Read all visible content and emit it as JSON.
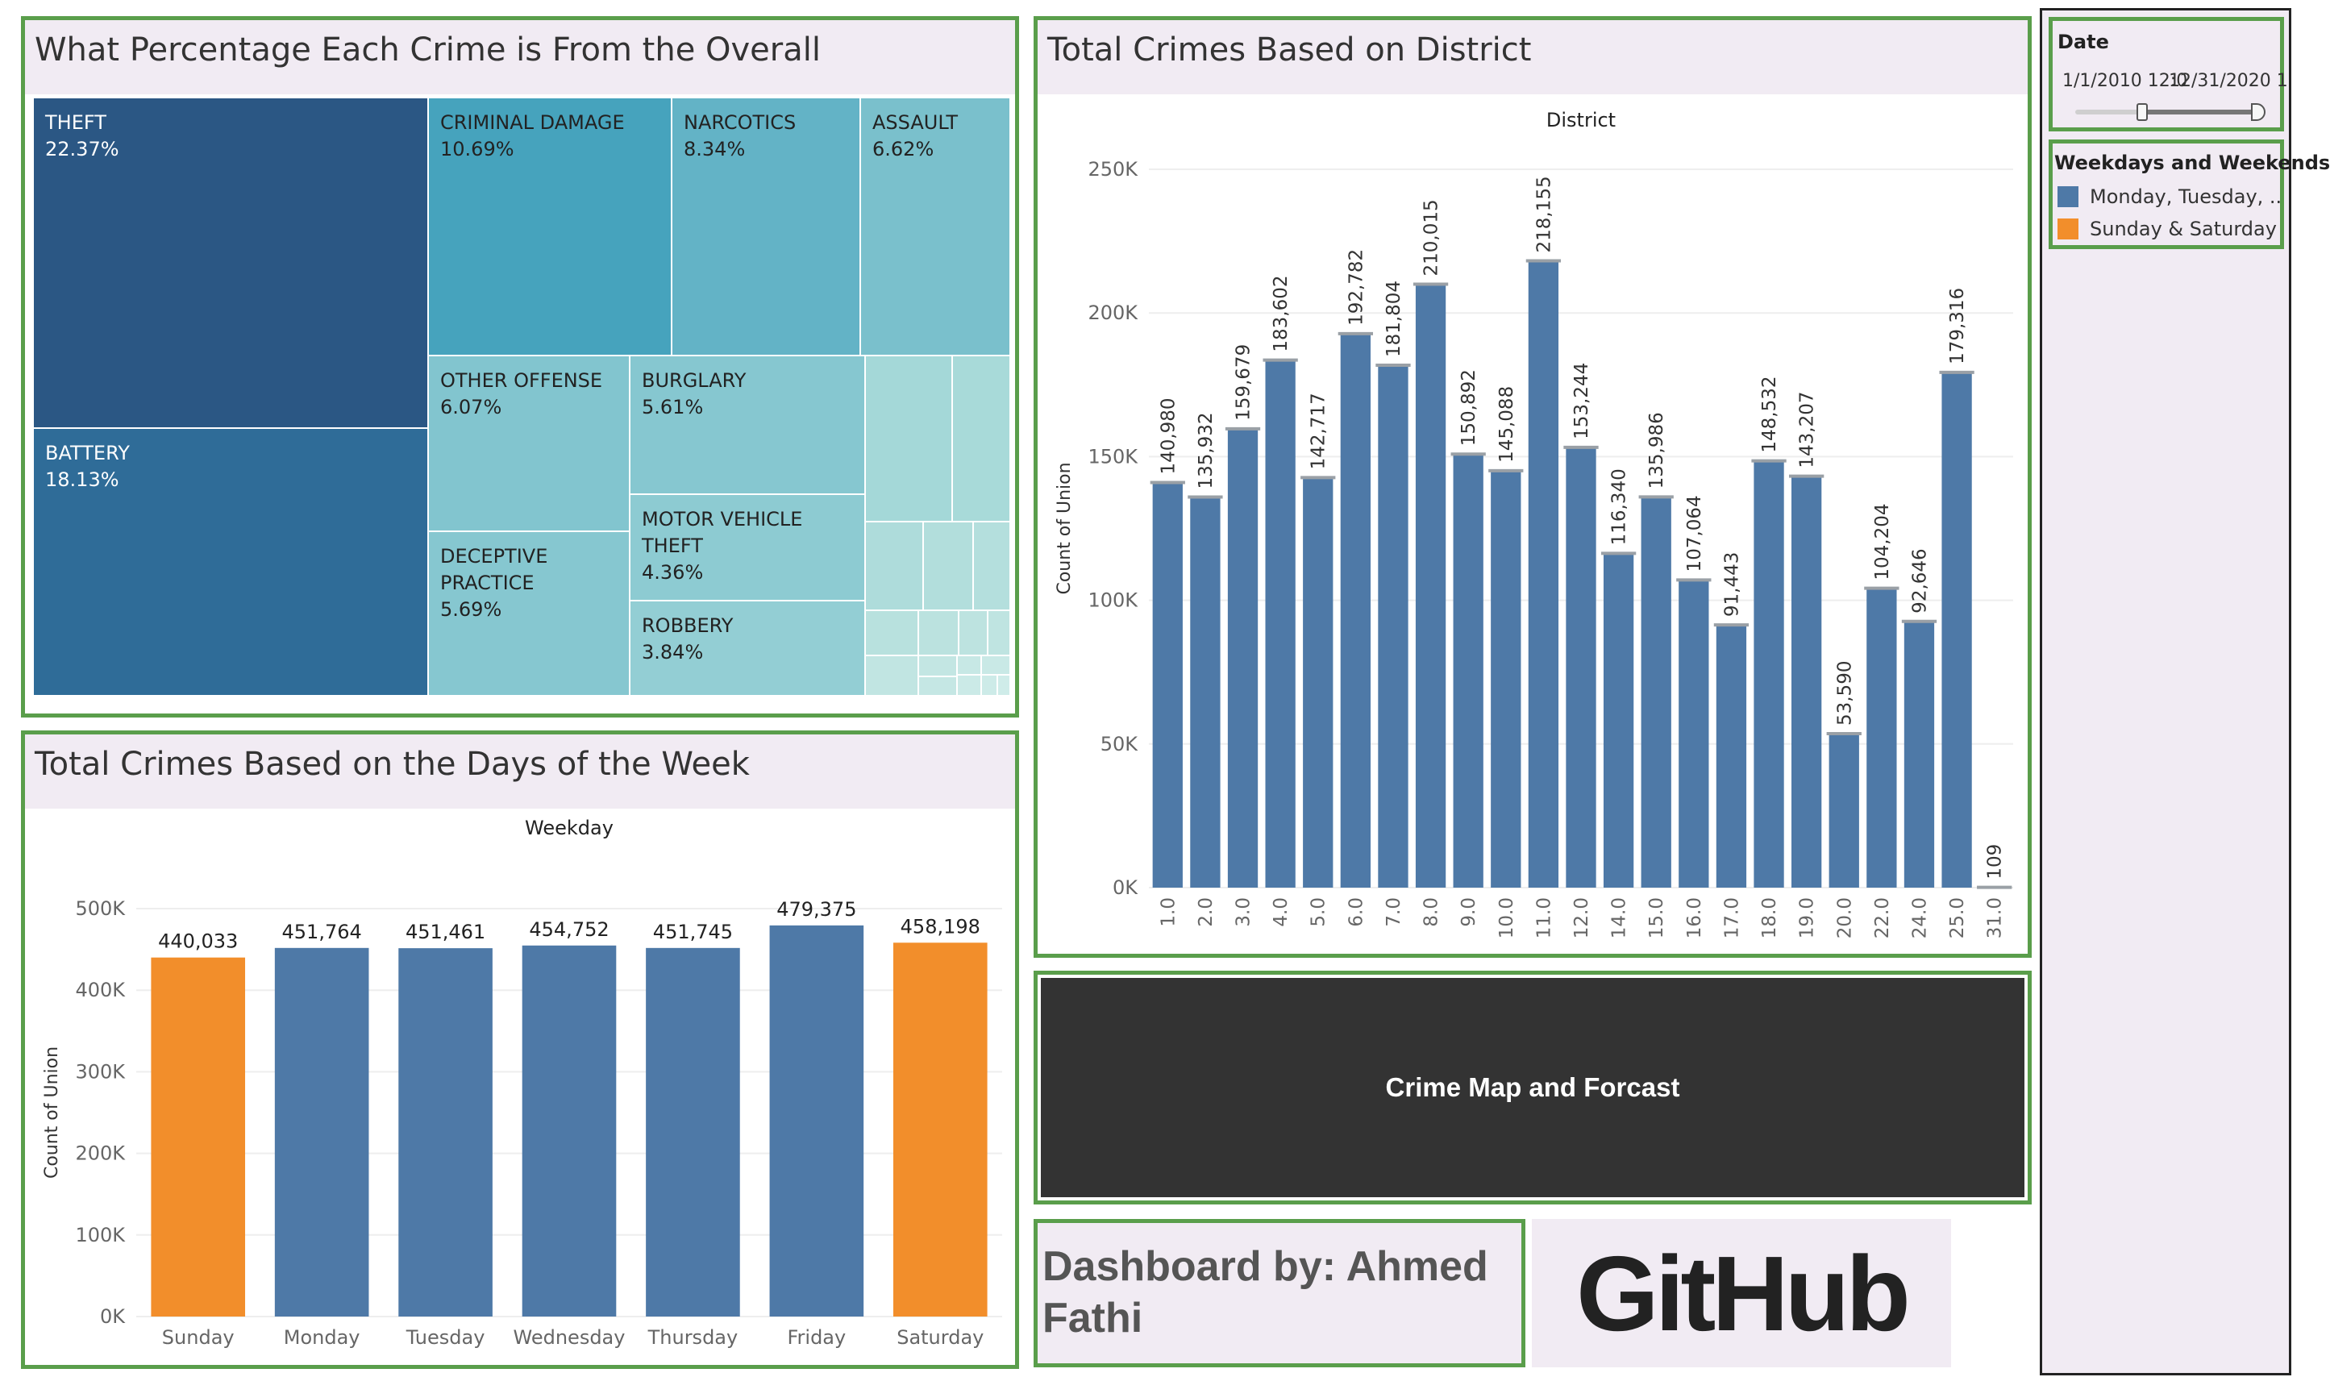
{
  "colors": {
    "panel_border": "#5a9e4b",
    "title_band": "#f1ebf3",
    "weekday_blue": "#4e79a7",
    "weekend_orange": "#f28e2b",
    "map_button_bg": "#333333",
    "sidebar_bg": "#f1ebf3"
  },
  "treemap": {
    "title": "What Percentage Each Crime is From the Overall",
    "cells": [
      {
        "name": "THEFT",
        "pct": "22.37%",
        "color": "#2b5784",
        "light": true
      },
      {
        "name": "BATTERY",
        "pct": "18.13%",
        "color": "#2f6c98",
        "light": true
      },
      {
        "name": "CRIMINAL DAMAGE",
        "pct": "10.69%",
        "color": "#46a3bd",
        "light": false
      },
      {
        "name": "NARCOTICS",
        "pct": "8.34%",
        "color": "#63b3c6",
        "light": false
      },
      {
        "name": "ASSAULT",
        "pct": "6.62%",
        "color": "#7ac0cc",
        "light": false
      },
      {
        "name": "OTHER OFFENSE",
        "pct": "6.07%",
        "color": "#82c5cf",
        "light": false
      },
      {
        "name": "BURGLARY",
        "pct": "5.61%",
        "color": "#86c7d0",
        "light": false
      },
      {
        "name": "DECEPTIVE PRACTICE",
        "pct": "5.69%",
        "color": "#86c7d0",
        "light": false
      },
      {
        "name": "MOTOR VEHICLE THEFT",
        "pct": "4.36%",
        "color": "#8dcbd2",
        "light": false
      },
      {
        "name": "ROBBERY",
        "pct": "3.84%",
        "color": "#93ced4",
        "light": false
      }
    ]
  },
  "district": {
    "title": "Total Crimes Based on District",
    "chart_data": {
      "type": "bar",
      "title": "District",
      "xlabel": "",
      "ylabel": "Count of Union",
      "categories": [
        "1.0",
        "2.0",
        "3.0",
        "4.0",
        "5.0",
        "6.0",
        "7.0",
        "8.0",
        "9.0",
        "10.0",
        "11.0",
        "12.0",
        "14.0",
        "15.0",
        "16.0",
        "17.0",
        "18.0",
        "19.0",
        "20.0",
        "22.0",
        "24.0",
        "25.0",
        "31.0"
      ],
      "values": [
        140980,
        135932,
        159679,
        183602,
        142717,
        192782,
        181804,
        210015,
        150892,
        145088,
        218155,
        153244,
        116340,
        135986,
        107064,
        91443,
        148532,
        143207,
        53590,
        104204,
        92646,
        179316,
        109
      ],
      "labels": [
        "140,980",
        "135,932",
        "159,679",
        "183,602",
        "142,717",
        "192,782",
        "181,804",
        "210,015",
        "150,892",
        "145,088",
        "218,155",
        "153,244",
        "116,340",
        "135,986",
        "107,064",
        "91,443",
        "148,532",
        "143,207",
        "53,590",
        "104,204",
        "92,646",
        "179,316",
        "109"
      ],
      "ylim": [
        0,
        250000
      ],
      "yticks": [
        "0K",
        "50K",
        "100K",
        "150K",
        "200K",
        "250K"
      ],
      "grid": true
    }
  },
  "weekday": {
    "title": "Total Crimes Based on the Days of the Week",
    "chart_data": {
      "type": "bar",
      "title": "Weekday",
      "xlabel": "",
      "ylabel": "Count of Union",
      "categories": [
        "Sunday",
        "Monday",
        "Tuesday",
        "Wednesday",
        "Thursday",
        "Friday",
        "Saturday"
      ],
      "values": [
        440033,
        451764,
        451461,
        454752,
        451745,
        479375,
        458198
      ],
      "labels": [
        "440,033",
        "451,764",
        "451,461",
        "454,752",
        "451,745",
        "479,375",
        "458,198"
      ],
      "weekend": [
        true,
        false,
        false,
        false,
        false,
        false,
        true
      ],
      "ylim": [
        0,
        500000
      ],
      "yticks": [
        "0K",
        "100K",
        "200K",
        "300K",
        "400K",
        "500K"
      ],
      "grid": true
    }
  },
  "map_button": {
    "label": "Crime Map and Forcast"
  },
  "author": {
    "label": "Dashboard by: Ahmed Fathi"
  },
  "github": {
    "label": "GitHub"
  },
  "filters": {
    "date": {
      "title": "Date",
      "start": "1/1/2010 12:0",
      "end": "12/31/2020 1"
    },
    "legend": {
      "title": "Weekdays and Weekends",
      "items": [
        {
          "label": "Monday, Tuesday, ..",
          "color": "#4e79a7"
        },
        {
          "label": "Sunday & Saturday",
          "color": "#f28e2b"
        }
      ]
    }
  }
}
